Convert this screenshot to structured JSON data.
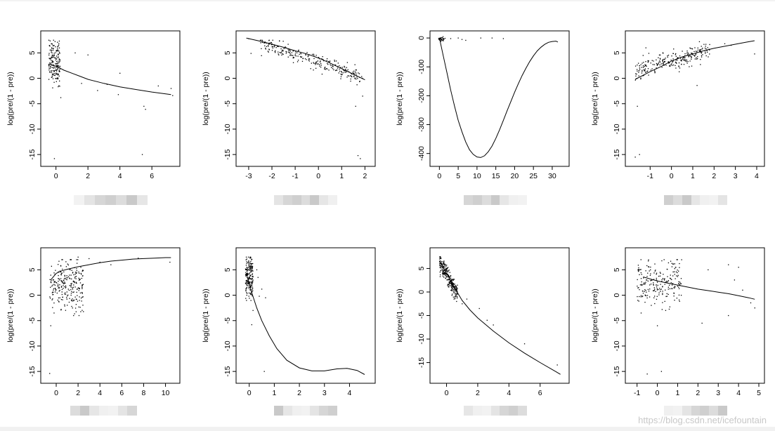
{
  "watermark": "https://blog.csdn.net/icefountain",
  "chart_data": [
    {
      "type": "scatter",
      "ylabel": "log(pre/(1 - pre))",
      "xlabel": "",
      "xlim": [
        -0.6,
        7.4
      ],
      "ylim": [
        -16.5,
        8.5
      ],
      "xticks": [
        0,
        2,
        4,
        6
      ],
      "yticks": [
        5,
        0,
        -5,
        -10,
        -15
      ],
      "cluster": {
        "x": [
          -0.45,
          0.25
        ],
        "y": [
          -1,
          7.5
        ],
        "n": 180
      },
      "outliers": [
        [
          0.3,
          -3.8
        ],
        [
          1.2,
          5
        ],
        [
          1.6,
          -1
        ],
        [
          2.0,
          4.6
        ],
        [
          2.6,
          -2.4
        ],
        [
          3.2,
          -1.2
        ],
        [
          3.9,
          -3.2
        ],
        [
          4.0,
          1.0
        ],
        [
          5.5,
          -5.5
        ],
        [
          5.6,
          -6.1
        ],
        [
          5.4,
          -15
        ],
        [
          -0.1,
          -15.8
        ],
        [
          7.2,
          -2
        ],
        [
          7.3,
          -3.4
        ],
        [
          6.4,
          -1.5
        ]
      ],
      "curve": [
        [
          -0.3,
          2.6
        ],
        [
          0,
          2.4
        ],
        [
          0.5,
          1.6
        ],
        [
          1,
          1.0
        ],
        [
          1.5,
          0.4
        ],
        [
          2,
          -0.2
        ],
        [
          3,
          -1.0
        ],
        [
          4,
          -1.7
        ],
        [
          5,
          -2.2
        ],
        [
          6,
          -2.7
        ],
        [
          7.2,
          -3.2
        ]
      ]
    },
    {
      "type": "scatter",
      "ylabel": "log(pre/(1 - pre))",
      "xlabel": "",
      "xlim": [
        -3.3,
        2.2
      ],
      "ylim": [
        -16.5,
        8.5
      ],
      "xticks": [
        -3,
        -2,
        -1,
        0,
        1,
        2
      ],
      "yticks": [
        5,
        0,
        -5,
        -10,
        -15
      ],
      "cluster": {
        "x": [
          -2.5,
          1.9
        ],
        "y": [
          -3,
          7.5
        ],
        "n": 260,
        "trend": true
      },
      "outliers": [
        [
          -3,
          7.8
        ],
        [
          -2.9,
          4.9
        ],
        [
          1.0,
          1.2
        ],
        [
          1.6,
          -5.5
        ],
        [
          1.7,
          -15.2
        ],
        [
          1.8,
          -15.8
        ],
        [
          1.9,
          -3.5
        ]
      ],
      "curve": [
        [
          -3.1,
          7.9
        ],
        [
          -2.5,
          7.3
        ],
        [
          -2,
          6.7
        ],
        [
          -1.5,
          6.1
        ],
        [
          -1,
          5.4
        ],
        [
          -0.5,
          4.8
        ],
        [
          0,
          4.0
        ],
        [
          0.5,
          3.0
        ],
        [
          1,
          1.9
        ],
        [
          1.5,
          0.8
        ],
        [
          2,
          -0.3
        ]
      ]
    },
    {
      "type": "scatter",
      "ylabel": "log(pre/(1 - pre))",
      "xlabel": "",
      "xlim": [
        -1,
        33
      ],
      "ylim": [
        -430,
        10
      ],
      "xticks": [
        0,
        5,
        10,
        15,
        20,
        25,
        30
      ],
      "yticks": [
        0,
        -100,
        -200,
        -300,
        -400
      ],
      "cluster": {
        "x": [
          -0.3,
          1.5
        ],
        "y": [
          -12,
          5
        ],
        "n": 30
      },
      "outliers": [
        [
          3,
          -2
        ],
        [
          5,
          0
        ],
        [
          6,
          -5
        ],
        [
          7,
          -8
        ],
        [
          11,
          0
        ],
        [
          14,
          0
        ],
        [
          17,
          -2
        ]
      ],
      "curve": [
        [
          0,
          0
        ],
        [
          1,
          -60
        ],
        [
          2,
          -120
        ],
        [
          3,
          -180
        ],
        [
          4,
          -235
        ],
        [
          5,
          -285
        ],
        [
          6,
          -325
        ],
        [
          7,
          -360
        ],
        [
          8,
          -387
        ],
        [
          9,
          -403
        ],
        [
          10,
          -412
        ],
        [
          11,
          -414
        ],
        [
          12,
          -408
        ],
        [
          13,
          -394
        ],
        [
          14,
          -374
        ],
        [
          15,
          -348
        ],
        [
          16,
          -318
        ],
        [
          17,
          -285
        ],
        [
          18,
          -252
        ],
        [
          19,
          -220
        ],
        [
          20,
          -188
        ],
        [
          21,
          -158
        ],
        [
          22,
          -130
        ],
        [
          23,
          -105
        ],
        [
          24,
          -82
        ],
        [
          25,
          -62
        ],
        [
          26,
          -45
        ],
        [
          27,
          -32
        ],
        [
          28,
          -22
        ],
        [
          29,
          -15
        ],
        [
          30,
          -12
        ],
        [
          31,
          -11
        ],
        [
          31.5,
          -14
        ]
      ]
    },
    {
      "type": "scatter",
      "ylabel": "log(pre/(1 - pre))",
      "xlabel": "",
      "xlim": [
        -1.9,
        4.1
      ],
      "ylim": [
        -16.5,
        8.5
      ],
      "xticks": [
        -1,
        0,
        1,
        2,
        3,
        4
      ],
      "yticks": [
        5,
        0,
        -5,
        -10,
        -15
      ],
      "cluster": {
        "x": [
          -1.7,
          1.8
        ],
        "y": [
          -3,
          7.5
        ],
        "n": 260,
        "trend2": true
      },
      "outliers": [
        [
          -1.6,
          -5.5
        ],
        [
          -1.5,
          -15.0
        ],
        [
          -1.7,
          -15.5
        ],
        [
          -1.2,
          6
        ],
        [
          3.9,
          4.8
        ],
        [
          2.8,
          6.5
        ],
        [
          2.5,
          6.8
        ],
        [
          1.2,
          -1.4
        ]
      ],
      "curve": [
        [
          -1.7,
          -0.2
        ],
        [
          -1,
          1.3
        ],
        [
          -0.5,
          2.3
        ],
        [
          0,
          3.4
        ],
        [
          0.5,
          4.2
        ],
        [
          1,
          4.8
        ],
        [
          1.5,
          5.4
        ],
        [
          2,
          5.9
        ],
        [
          2.5,
          6.3
        ],
        [
          3,
          6.7
        ],
        [
          3.5,
          7.1
        ],
        [
          3.9,
          7.4
        ]
      ]
    },
    {
      "type": "scatter",
      "ylabel": "log(pre/(1 - pre))",
      "xlabel": "",
      "xlim": [
        -0.9,
        10.8
      ],
      "ylim": [
        -16.5,
        8.5
      ],
      "xticks": [
        0,
        2,
        4,
        6,
        8,
        10
      ],
      "yticks": [
        5,
        0,
        -5,
        -10,
        -15
      ],
      "cluster": {
        "x": [
          -0.6,
          2.5
        ],
        "y": [
          -3,
          7
        ],
        "n": 260
      },
      "outliers": [
        [
          -0.5,
          -6
        ],
        [
          -0.6,
          -15.4
        ],
        [
          -0.2,
          -3.5
        ],
        [
          2,
          7.5
        ],
        [
          3,
          7.2
        ],
        [
          4,
          6.5
        ],
        [
          5,
          6
        ],
        [
          7.5,
          7.3
        ],
        [
          10.4,
          6.5
        ]
      ],
      "curve": [
        [
          -0.5,
          3.0
        ],
        [
          0,
          4.3
        ],
        [
          0.5,
          4.8
        ],
        [
          1,
          5.1
        ],
        [
          2,
          5.6
        ],
        [
          3,
          6.0
        ],
        [
          4,
          6.4
        ],
        [
          5,
          6.7
        ],
        [
          6,
          6.9
        ],
        [
          7,
          7.1
        ],
        [
          8,
          7.2
        ],
        [
          9,
          7.3
        ],
        [
          10,
          7.4
        ],
        [
          10.5,
          7.4
        ]
      ]
    },
    {
      "type": "scatter",
      "ylabel": "log(pre/(1 - pre))",
      "xlabel": "",
      "xlim": [
        -0.3,
        4.8
      ],
      "ylim": [
        -16.5,
        8.5
      ],
      "xticks": [
        0,
        1,
        2,
        3,
        4
      ],
      "yticks": [
        5,
        0,
        -5,
        -10,
        -15
      ],
      "cluster": {
        "x": [
          -0.15,
          0.15
        ],
        "y": [
          -1,
          7.5
        ],
        "n": 200
      },
      "outliers": [
        [
          0.1,
          -5.8
        ],
        [
          0.15,
          -3
        ],
        [
          0.35,
          3.5
        ],
        [
          0.4,
          -0.2
        ],
        [
          0.5,
          1.2
        ],
        [
          0.6,
          -15.0
        ],
        [
          0.65,
          -0.5
        ],
        [
          0.3,
          5
        ]
      ],
      "curve": [
        [
          -0.1,
          4.0
        ],
        [
          0.1,
          0.5
        ],
        [
          0.3,
          -2.5
        ],
        [
          0.5,
          -5.0
        ],
        [
          0.8,
          -8.0
        ],
        [
          1.1,
          -10.5
        ],
        [
          1.5,
          -12.8
        ],
        [
          2,
          -14.3
        ],
        [
          2.5,
          -14.9
        ],
        [
          3,
          -14.9
        ],
        [
          3.5,
          -14.5
        ],
        [
          3.9,
          -14.4
        ],
        [
          4.3,
          -14.8
        ],
        [
          4.6,
          -15.6
        ]
      ]
    },
    {
      "type": "scatter",
      "ylabel": "log(pre/(1 - pre))",
      "xlabel": "",
      "xlim": [
        -0.7,
        7.5
      ],
      "ylim": [
        -18.5,
        8.5
      ],
      "xticks": [
        0,
        2,
        4,
        6
      ],
      "yticks": [
        5,
        0,
        -5,
        -10,
        -15
      ],
      "cluster": {
        "x": [
          -0.45,
          0.7
        ],
        "y": [
          -1,
          7.5
        ],
        "n": 280,
        "trend3": true
      },
      "outliers": [
        [
          1.0,
          -2.5
        ],
        [
          1.3,
          -1.5
        ],
        [
          2.1,
          -3.5
        ],
        [
          2.6,
          -6
        ],
        [
          7.1,
          -15.5
        ],
        [
          5.0,
          -11
        ],
        [
          3.0,
          -7
        ]
      ],
      "curve": [
        [
          -0.4,
          6.2
        ],
        [
          0,
          4.0
        ],
        [
          0.5,
          1.0
        ],
        [
          1,
          -1.8
        ],
        [
          1.5,
          -3.8
        ],
        [
          2,
          -5.5
        ],
        [
          3,
          -8.3
        ],
        [
          4,
          -10.8
        ],
        [
          5,
          -13.0
        ],
        [
          6,
          -15.0
        ],
        [
          7,
          -16.9
        ],
        [
          7.3,
          -17.5
        ]
      ]
    },
    {
      "type": "scatter",
      "ylabel": "log(pre/(1 - pre))",
      "xlabel": "",
      "xlim": [
        -1.3,
        5.0
      ],
      "ylim": [
        -16.5,
        8.5
      ],
      "xticks": [
        -1,
        0,
        1,
        2,
        3,
        4,
        5
      ],
      "yticks": [
        5,
        0,
        -5,
        -10,
        -15
      ],
      "cluster": {
        "x": [
          -1.0,
          1.2
        ],
        "y": [
          -2,
          7
        ],
        "n": 220
      },
      "outliers": [
        [
          -0.8,
          -3.5
        ],
        [
          -0.5,
          -15.5
        ],
        [
          0,
          -6
        ],
        [
          0.2,
          -15
        ],
        [
          2.2,
          -5.5
        ],
        [
          3.5,
          -4
        ],
        [
          4.6,
          -1.5
        ],
        [
          4.8,
          -2.5
        ],
        [
          2.5,
          5
        ],
        [
          3.5,
          6
        ],
        [
          4,
          5.5
        ],
        [
          3.8,
          3
        ],
        [
          4.2,
          1
        ]
      ],
      "curve": [
        [
          -0.7,
          3.6
        ],
        [
          0,
          2.8
        ],
        [
          0.5,
          2.4
        ],
        [
          1,
          2.0
        ],
        [
          1.5,
          1.6
        ],
        [
          2,
          1.2
        ],
        [
          2.5,
          0.9
        ],
        [
          3,
          0.6
        ],
        [
          3.5,
          0.3
        ],
        [
          4,
          -0.1
        ],
        [
          4.5,
          -0.5
        ],
        [
          4.8,
          -0.8
        ]
      ]
    }
  ]
}
